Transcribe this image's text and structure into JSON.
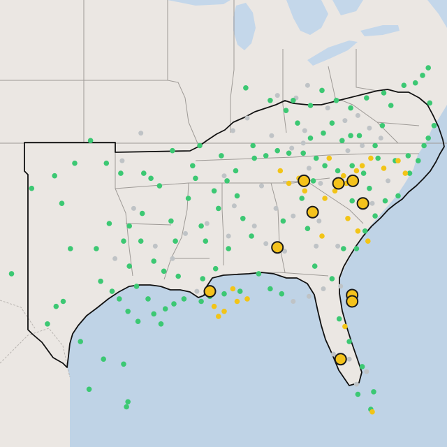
{
  "map": {
    "colors": {
      "land": "#ebe7e3",
      "water": "#bfd3e6",
      "lake": "#c4d7ea",
      "state_border": "#9e9a96",
      "country_border": "#b9b5b1",
      "region_outline": "#111111",
      "green_marker": "#3cc873",
      "yellow_marker": "#f2c417",
      "gray_marker": "#bfc3c6",
      "large_marker_fill": "#f4c21c",
      "large_marker_stroke": "#1a1a1a"
    },
    "markers": {
      "green": [
        [
          -89.0,
          38.7
        ],
        [
          -87.3,
          38.2
        ],
        [
          -86.2,
          37.8
        ],
        [
          -85.7,
          38.2
        ],
        [
          -84.5,
          38.0
        ],
        [
          -83.7,
          38.6
        ],
        [
          -83.0,
          37.3
        ],
        [
          -84.5,
          36.7
        ],
        [
          -83.6,
          36.9
        ],
        [
          -82.3,
          36.6
        ],
        [
          -81.7,
          36.8
        ],
        [
          -81.1,
          36.8
        ],
        [
          -80.0,
          36.4
        ],
        [
          -79.5,
          37.2
        ],
        [
          -78.9,
          38.0
        ],
        [
          -78.0,
          38.8
        ],
        [
          -77.2,
          38.9
        ],
        [
          -76.7,
          39.2
        ],
        [
          -76.3,
          39.5
        ],
        [
          -76.2,
          38.1
        ],
        [
          -75.9,
          37.2
        ],
        [
          -76.3,
          36.7
        ],
        [
          -76.6,
          36.4
        ],
        [
          -77.7,
          36.0
        ],
        [
          -78.6,
          35.8
        ],
        [
          -79.8,
          35.9
        ],
        [
          -80.8,
          35.3
        ],
        [
          -81.6,
          35.6
        ],
        [
          -82.6,
          35.4
        ],
        [
          -83.5,
          35.6
        ],
        [
          -84.1,
          35.9
        ],
        [
          -85.0,
          36.1
        ],
        [
          -86.0,
          36.1
        ],
        [
          -86.8,
          36.2
        ],
        [
          -87.6,
          36.0
        ],
        [
          -88.4,
          35.9
        ],
        [
          -89.7,
          35.4
        ],
        [
          -90.7,
          36.0
        ],
        [
          -92.2,
          36.4
        ],
        [
          -94.1,
          36.2
        ],
        [
          -92.5,
          35.1
        ],
        [
          -91.2,
          34.6
        ],
        [
          -93.0,
          34.3
        ],
        [
          -94.2,
          33.4
        ],
        [
          -92.1,
          33.2
        ],
        [
          -90.9,
          33.9
        ],
        [
          -89.6,
          34.4
        ],
        [
          -89.2,
          33.5
        ],
        [
          -88.6,
          32.8
        ],
        [
          -90.2,
          32.3
        ],
        [
          -91.1,
          31.5
        ],
        [
          -92.0,
          31.1
        ],
        [
          -93.7,
          31.2
        ],
        [
          -94.7,
          31.4
        ],
        [
          -95.4,
          31.8
        ],
        [
          -96.3,
          32.6
        ],
        [
          -97.5,
          32.6
        ],
        [
          -98.5,
          33.3
        ],
        [
          -97.1,
          33.2
        ],
        [
          -96.2,
          33.7
        ],
        [
          -95.0,
          34.8
        ],
        [
          -96.1,
          35.3
        ],
        [
          -97.7,
          35.3
        ],
        [
          -98.7,
          35.7
        ],
        [
          -99.8,
          36.6
        ],
        [
          -100.9,
          35.7
        ],
        [
          -102.3,
          35.2
        ],
        [
          -101.8,
          34.1
        ],
        [
          -101.2,
          32.3
        ],
        [
          -99.4,
          32.3
        ],
        [
          -99.1,
          31.0
        ],
        [
          -97.8,
          30.3
        ],
        [
          -97.2,
          29.8
        ],
        [
          -96.5,
          29.4
        ],
        [
          -95.4,
          29.7
        ],
        [
          -94.6,
          29.9
        ],
        [
          -94.0,
          30.1
        ],
        [
          -93.3,
          30.3
        ],
        [
          -92.1,
          30.2
        ],
        [
          -91.5,
          30.4
        ],
        [
          -90.5,
          30.5
        ],
        [
          -89.4,
          30.6
        ],
        [
          -101.7,
          30.2
        ],
        [
          -102.2,
          30.0
        ],
        [
          -100.5,
          28.6
        ],
        [
          -98.9,
          27.9
        ],
        [
          -97.5,
          27.7
        ],
        [
          -97.2,
          26.2
        ],
        [
          -99.9,
          26.7
        ],
        [
          -102.8,
          29.3
        ],
        [
          -105.3,
          31.3
        ],
        [
          -103.9,
          34.7
        ],
        [
          -86.4,
          33.4
        ],
        [
          -85.1,
          34.3
        ],
        [
          -84.3,
          35.0
        ],
        [
          -84.7,
          33.1
        ],
        [
          -84.2,
          31.6
        ],
        [
          -83.0,
          31.1
        ],
        [
          -82.2,
          32.3
        ],
        [
          -81.3,
          32.3
        ],
        [
          -80.7,
          33.0
        ],
        [
          -80.0,
          33.6
        ],
        [
          -79.3,
          34.2
        ],
        [
          -78.4,
          34.4
        ],
        [
          -77.6,
          35.3
        ],
        [
          -77.0,
          35.8
        ],
        [
          -80.4,
          34.7
        ],
        [
          -81.6,
          34.2
        ],
        [
          -81.2,
          26.5
        ],
        [
          -80.9,
          27.6
        ],
        [
          -81.8,
          28.6
        ],
        [
          -82.5,
          29.5
        ],
        [
          -80.3,
          25.9
        ],
        [
          -80.1,
          26.6
        ],
        [
          -79.4,
          38.5
        ],
        [
          -80.6,
          38.3
        ],
        [
          -81.7,
          37.9
        ],
        [
          -82.7,
          38.2
        ],
        [
          -85.4,
          37.3
        ],
        [
          -88.5,
          36.4
        ],
        [
          -90.3,
          35.0
        ],
        [
          -91.8,
          32.6
        ],
        [
          -88.1,
          31.3
        ],
        [
          -87.3,
          30.7
        ],
        [
          -86.5,
          30.5
        ],
        [
          -95.8,
          30.3
        ],
        [
          -96.6,
          30.8
        ],
        [
          -97.1,
          31.6
        ],
        [
          -98.3,
          30.6
        ],
        [
          -94.9,
          29.3
        ],
        [
          -97.3,
          26.0
        ],
        [
          -92.7,
          35.6
        ],
        [
          -95.6,
          35.1
        ],
        [
          -93.9,
          32.6
        ]
      ],
      "yellow": [
        [
          -83.2,
          35.9
        ],
        [
          -82.2,
          35.2
        ],
        [
          -81.3,
          35.4
        ],
        [
          -80.3,
          35.9
        ],
        [
          -79.4,
          35.5
        ],
        [
          -78.4,
          35.8
        ],
        [
          -77.9,
          35.3
        ],
        [
          -83.5,
          34.3
        ],
        [
          -82.8,
          34.6
        ],
        [
          -81.9,
          33.5
        ],
        [
          -81.2,
          33.0
        ],
        [
          -80.5,
          32.6
        ],
        [
          -83.7,
          32.8
        ],
        [
          -84.4,
          33.9
        ],
        [
          -84.9,
          34.6
        ],
        [
          -86.6,
          35.4
        ],
        [
          -85.3,
          35.1
        ],
        [
          -82.0,
          34.9
        ],
        [
          -91.2,
          30.0
        ],
        [
          -90.5,
          29.8
        ],
        [
          -89.6,
          30.2
        ],
        [
          -88.9,
          30.3
        ],
        [
          -89.9,
          30.7
        ],
        [
          -82.1,
          29.2
        ],
        [
          -80.2,
          25.8
        ],
        [
          -90.9,
          29.6
        ],
        [
          -86.0,
          34.9
        ],
        [
          -80.9,
          35.6
        ]
      ],
      "gray": [
        [
          -86.8,
          38.4
        ],
        [
          -85.5,
          38.3
        ],
        [
          -84.7,
          38.8
        ],
        [
          -83.3,
          37.9
        ],
        [
          -84.9,
          37.0
        ],
        [
          -82.1,
          37.4
        ],
        [
          -81.2,
          37.6
        ],
        [
          -80.4,
          37.1
        ],
        [
          -79.6,
          36.7
        ],
        [
          -80.9,
          36.4
        ],
        [
          -81.9,
          36.2
        ],
        [
          -85.8,
          36.3
        ],
        [
          -87.2,
          36.8
        ],
        [
          -88.9,
          37.5
        ],
        [
          -89.9,
          37.0
        ],
        [
          -90.5,
          35.2
        ],
        [
          -89.8,
          34.0
        ],
        [
          -91.7,
          33.3
        ],
        [
          -90.2,
          32.8
        ],
        [
          -88.4,
          33.2
        ],
        [
          -87.6,
          32.5
        ],
        [
          -86.9,
          33.9
        ],
        [
          -85.7,
          33.6
        ],
        [
          -84.6,
          35.5
        ],
        [
          -83.8,
          34.9
        ],
        [
          -81.5,
          34.9
        ],
        [
          -80.2,
          34.1
        ],
        [
          -79.1,
          35.0
        ],
        [
          -82.6,
          32.4
        ],
        [
          -83.6,
          30.7
        ],
        [
          -84.6,
          30.4
        ],
        [
          -85.7,
          30.2
        ],
        [
          -82.4,
          30.8
        ],
        [
          -81.5,
          30.1
        ],
        [
          -82.9,
          28.1
        ],
        [
          -81.3,
          26.9
        ],
        [
          -80.6,
          27.4
        ],
        [
          -81.8,
          27.9
        ],
        [
          -94.1,
          31.9
        ],
        [
          -93.2,
          32.9
        ],
        [
          -95.3,
          32.4
        ],
        [
          -96.8,
          33.9
        ],
        [
          -98.1,
          31.9
        ],
        [
          -97.6,
          35.8
        ],
        [
          -96.3,
          36.9
        ],
        [
          -92.4,
          30.6
        ],
        [
          -87.9,
          34.8
        ],
        [
          -86.3,
          32.2
        ],
        [
          -84.1,
          32.4
        ],
        [
          -83.9,
          33.4
        ],
        [
          -85.0,
          36.5
        ]
      ],
      "large": [
        [
          -84.95,
          35.0
        ],
        [
          -82.55,
          34.9
        ],
        [
          -81.55,
          35.0
        ],
        [
          -80.85,
          34.1
        ],
        [
          -84.35,
          33.75
        ],
        [
          -86.8,
          32.35
        ],
        [
          -91.5,
          30.6
        ],
        [
          -81.6,
          30.45
        ],
        [
          -81.6,
          30.2
        ],
        [
          -82.4,
          27.9
        ]
      ]
    }
  }
}
